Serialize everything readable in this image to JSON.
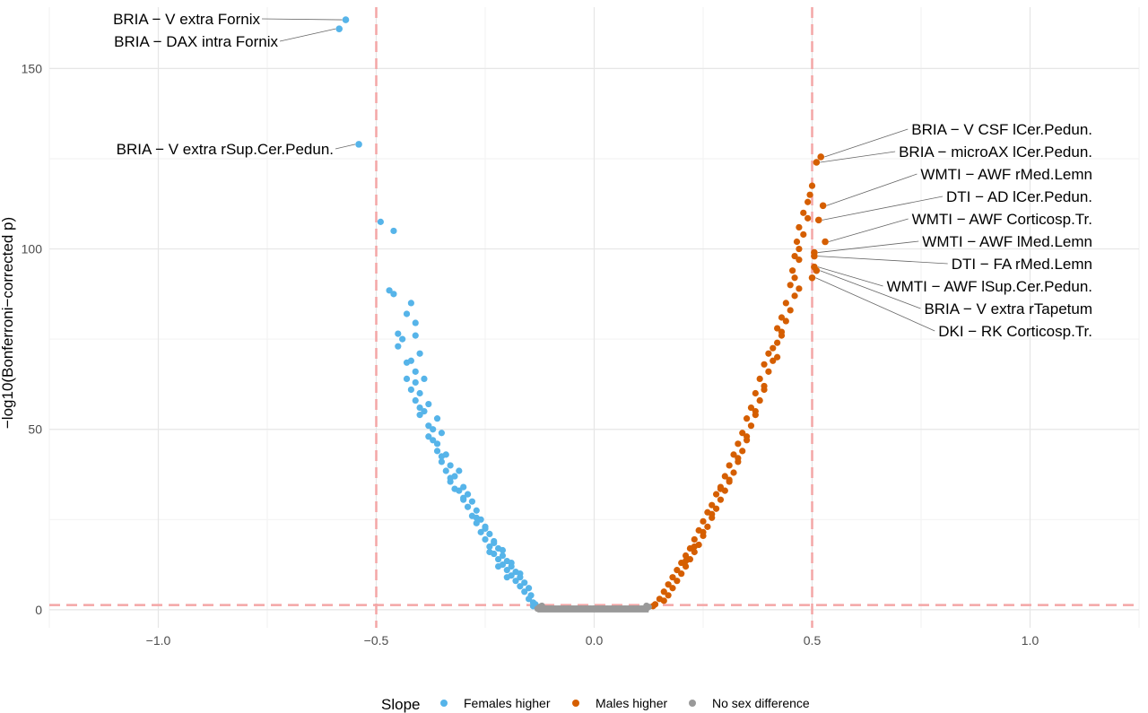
{
  "chart_data": {
    "type": "scatter",
    "title": "",
    "xlabel": "",
    "ylabel": "−log10(Bonferroni−corrected p)",
    "xlim": [
      -1.25,
      1.25
    ],
    "ylim": [
      -5,
      167
    ],
    "x_ticks": [
      -1.0,
      -0.5,
      0.0,
      0.5,
      1.0
    ],
    "x_tick_labels": [
      "−1.0",
      "−0.5",
      "0.0",
      "0.5",
      "1.0"
    ],
    "y_ticks": [
      0,
      50,
      100,
      150
    ],
    "y_tick_labels": [
      "0",
      "50",
      "100",
      "150"
    ],
    "reference_lines": {
      "vertical": [
        -0.5,
        0.5
      ],
      "horizontal": [
        1.3
      ],
      "color": "#f4a6a6",
      "style": "dashed"
    },
    "grid": true,
    "legend": {
      "title": "Slope",
      "position": "bottom",
      "entries": [
        {
          "name": "Females higher",
          "color": "#56b4e9"
        },
        {
          "name": "Males higher",
          "color": "#d55e00"
        },
        {
          "name": "No sex difference",
          "color": "#999999"
        }
      ]
    },
    "labeled_points": [
      {
        "label": "BRIA − V extra Fornix",
        "x": -0.57,
        "y": 163.5,
        "color": "#56b4e9"
      },
      {
        "label": "BRIA − DAX intra Fornix",
        "x": -0.585,
        "y": 161,
        "color": "#56b4e9"
      },
      {
        "label": "BRIA − V extra rSup.Cer.Pedun.",
        "x": -0.54,
        "y": 129,
        "color": "#56b4e9"
      },
      {
        "label": "BRIA − V CSF lCer.Pedun.",
        "x": 0.52,
        "y": 125.5,
        "color": "#d55e00"
      },
      {
        "label": "BRIA − microAX lCer.Pedun.",
        "x": 0.51,
        "y": 124,
        "color": "#d55e00"
      },
      {
        "label": "WMTI − AWF rMed.Lemn",
        "x": 0.525,
        "y": 112,
        "color": "#d55e00"
      },
      {
        "label": "DTI − AD lCer.Pedun.",
        "x": 0.515,
        "y": 108,
        "color": "#d55e00"
      },
      {
        "label": "WMTI − AWF Corticosp.Tr.",
        "x": 0.53,
        "y": 102,
        "color": "#d55e00"
      },
      {
        "label": "WMTI − AWF lMed.Lemn",
        "x": 0.505,
        "y": 99,
        "color": "#d55e00"
      },
      {
        "label": "DTI − FA rMed.Lemn",
        "x": 0.505,
        "y": 98,
        "color": "#d55e00"
      },
      {
        "label": "WMTI − AWF lSup.Cer.Pedun.",
        "x": 0.505,
        "y": 95,
        "color": "#d55e00"
      },
      {
        "label": "BRIA − V extra rTapetum",
        "x": 0.51,
        "y": 94,
        "color": "#d55e00"
      },
      {
        "label": "DKI − RK Corticosp.Tr.",
        "x": 0.5,
        "y": 92,
        "color": "#d55e00"
      }
    ],
    "series": [
      {
        "name": "Females higher",
        "color": "#56b4e9",
        "points": [
          [
            -0.49,
            107.5
          ],
          [
            -0.46,
            105
          ],
          [
            -0.47,
            88.5
          ],
          [
            -0.46,
            87.5
          ],
          [
            -0.43,
            82
          ],
          [
            -0.42,
            85
          ],
          [
            -0.41,
            79.5
          ],
          [
            -0.45,
            76.5
          ],
          [
            -0.44,
            75
          ],
          [
            -0.45,
            73
          ],
          [
            -0.41,
            76
          ],
          [
            -0.4,
            71
          ],
          [
            -0.42,
            69
          ],
          [
            -0.43,
            68.5
          ],
          [
            -0.41,
            66
          ],
          [
            -0.39,
            64
          ],
          [
            -0.43,
            64
          ],
          [
            -0.41,
            63
          ],
          [
            -0.42,
            61
          ],
          [
            -0.4,
            60
          ],
          [
            -0.41,
            58
          ],
          [
            -0.38,
            57
          ],
          [
            -0.4,
            56
          ],
          [
            -0.39,
            55
          ],
          [
            -0.4,
            54
          ],
          [
            -0.36,
            53
          ],
          [
            -0.38,
            51
          ],
          [
            -0.37,
            50
          ],
          [
            -0.35,
            49
          ],
          [
            -0.37,
            47
          ],
          [
            -0.36,
            46
          ],
          [
            -0.36,
            44
          ],
          [
            -0.34,
            43
          ],
          [
            -0.35,
            41
          ],
          [
            -0.33,
            40
          ],
          [
            -0.34,
            38.5
          ],
          [
            -0.31,
            38.5
          ],
          [
            -0.32,
            37
          ],
          [
            -0.33,
            35.5
          ],
          [
            -0.3,
            34
          ],
          [
            -0.31,
            33
          ],
          [
            -0.29,
            32
          ],
          [
            -0.3,
            30.5
          ],
          [
            -0.28,
            30
          ],
          [
            -0.29,
            28.5
          ],
          [
            -0.27,
            27.5
          ],
          [
            -0.28,
            26
          ],
          [
            -0.26,
            25
          ],
          [
            -0.27,
            24
          ],
          [
            -0.25,
            23
          ],
          [
            -0.26,
            21.5
          ],
          [
            -0.24,
            21
          ],
          [
            -0.25,
            19.5
          ],
          [
            -0.23,
            18.5
          ],
          [
            -0.24,
            17.5
          ],
          [
            -0.22,
            17
          ],
          [
            -0.23,
            15.5
          ],
          [
            -0.21,
            15
          ],
          [
            -0.22,
            14
          ],
          [
            -0.2,
            13.5
          ],
          [
            -0.21,
            12.5
          ],
          [
            -0.19,
            12
          ],
          [
            -0.2,
            11
          ],
          [
            -0.18,
            10.5
          ],
          [
            -0.19,
            9.5
          ],
          [
            -0.17,
            9
          ],
          [
            -0.18,
            8
          ],
          [
            -0.16,
            7.5
          ],
          [
            -0.17,
            6.5
          ],
          [
            -0.15,
            6
          ],
          [
            -0.16,
            5
          ],
          [
            -0.145,
            4
          ],
          [
            -0.15,
            3
          ],
          [
            -0.14,
            2
          ],
          [
            -0.135,
            1.5
          ],
          [
            -0.14,
            1
          ],
          [
            -0.32,
            33.5
          ],
          [
            -0.3,
            31
          ],
          [
            -0.27,
            25.5
          ],
          [
            -0.25,
            22.5
          ],
          [
            -0.23,
            19
          ],
          [
            -0.21,
            16.5
          ],
          [
            -0.19,
            13
          ],
          [
            -0.17,
            10
          ],
          [
            -0.35,
            42.5
          ],
          [
            -0.33,
            36.5
          ],
          [
            -0.38,
            48
          ],
          [
            -0.24,
            16
          ],
          [
            -0.22,
            12
          ],
          [
            -0.2,
            9
          ]
        ]
      },
      {
        "name": "Males higher",
        "color": "#d55e00",
        "points": [
          [
            0.5,
            117.5
          ],
          [
            0.495,
            115
          ],
          [
            0.49,
            113
          ],
          [
            0.48,
            110
          ],
          [
            0.49,
            108.5
          ],
          [
            0.47,
            106
          ],
          [
            0.48,
            104
          ],
          [
            0.465,
            102
          ],
          [
            0.47,
            100
          ],
          [
            0.46,
            98
          ],
          [
            0.47,
            97
          ],
          [
            0.455,
            94
          ],
          [
            0.46,
            92
          ],
          [
            0.45,
            90
          ],
          [
            0.47,
            89
          ],
          [
            0.46,
            87
          ],
          [
            0.44,
            85
          ],
          [
            0.45,
            83
          ],
          [
            0.43,
            81
          ],
          [
            0.44,
            80
          ],
          [
            0.42,
            78
          ],
          [
            0.43,
            76
          ],
          [
            0.42,
            74
          ],
          [
            0.41,
            72.5
          ],
          [
            0.4,
            71
          ],
          [
            0.42,
            70
          ],
          [
            0.39,
            68
          ],
          [
            0.4,
            66
          ],
          [
            0.38,
            64
          ],
          [
            0.39,
            62
          ],
          [
            0.37,
            60
          ],
          [
            0.38,
            58
          ],
          [
            0.36,
            56
          ],
          [
            0.37,
            54
          ],
          [
            0.35,
            53
          ],
          [
            0.36,
            51
          ],
          [
            0.34,
            49
          ],
          [
            0.35,
            47
          ],
          [
            0.33,
            46
          ],
          [
            0.34,
            44
          ],
          [
            0.32,
            43
          ],
          [
            0.33,
            41
          ],
          [
            0.31,
            40
          ],
          [
            0.32,
            38
          ],
          [
            0.3,
            37
          ],
          [
            0.31,
            35.5
          ],
          [
            0.29,
            34
          ],
          [
            0.3,
            33
          ],
          [
            0.28,
            32
          ],
          [
            0.29,
            30.5
          ],
          [
            0.27,
            29
          ],
          [
            0.28,
            28
          ],
          [
            0.26,
            27
          ],
          [
            0.27,
            25.5
          ],
          [
            0.25,
            24.5
          ],
          [
            0.26,
            23
          ],
          [
            0.24,
            22
          ],
          [
            0.25,
            20.5
          ],
          [
            0.23,
            19.5
          ],
          [
            0.24,
            18
          ],
          [
            0.22,
            17
          ],
          [
            0.23,
            16
          ],
          [
            0.21,
            15
          ],
          [
            0.22,
            14
          ],
          [
            0.2,
            13
          ],
          [
            0.21,
            12
          ],
          [
            0.19,
            11
          ],
          [
            0.2,
            10
          ],
          [
            0.18,
            9
          ],
          [
            0.19,
            8
          ],
          [
            0.17,
            7
          ],
          [
            0.18,
            6
          ],
          [
            0.16,
            5
          ],
          [
            0.17,
            4
          ],
          [
            0.15,
            3
          ],
          [
            0.16,
            2.5
          ],
          [
            0.14,
            1.5
          ],
          [
            0.135,
            1
          ],
          [
            0.29,
            33.5
          ],
          [
            0.31,
            36
          ],
          [
            0.33,
            42
          ],
          [
            0.35,
            48
          ],
          [
            0.37,
            55
          ],
          [
            0.39,
            61
          ],
          [
            0.41,
            69
          ],
          [
            0.43,
            77
          ],
          [
            0.27,
            26.5
          ],
          [
            0.25,
            21.5
          ],
          [
            0.23,
            17.5
          ],
          [
            0.21,
            13.5
          ]
        ]
      },
      {
        "name": "No sex difference",
        "color": "#999999",
        "points": [
          [
            -0.13,
            0.3
          ],
          [
            -0.12,
            0.3
          ],
          [
            -0.11,
            0.3
          ],
          [
            -0.1,
            0.3
          ],
          [
            -0.09,
            0.3
          ],
          [
            -0.08,
            0.3
          ],
          [
            -0.07,
            0.3
          ],
          [
            -0.06,
            0.3
          ],
          [
            -0.05,
            0.3
          ],
          [
            -0.04,
            0.3
          ],
          [
            -0.03,
            0.3
          ],
          [
            -0.02,
            0.3
          ],
          [
            -0.01,
            0.3
          ],
          [
            0.0,
            0.3
          ],
          [
            0.01,
            0.3
          ],
          [
            0.02,
            0.3
          ],
          [
            0.03,
            0.3
          ],
          [
            0.04,
            0.3
          ],
          [
            0.05,
            0.3
          ],
          [
            0.06,
            0.3
          ],
          [
            0.07,
            0.3
          ],
          [
            0.08,
            0.3
          ],
          [
            0.09,
            0.3
          ],
          [
            0.1,
            0.3
          ],
          [
            0.11,
            0.3
          ],
          [
            0.12,
            0.3
          ],
          [
            -0.125,
            0.8
          ],
          [
            0.125,
            0.8
          ],
          [
            -0.12,
            1.1
          ],
          [
            0.12,
            1.1
          ]
        ]
      }
    ]
  }
}
